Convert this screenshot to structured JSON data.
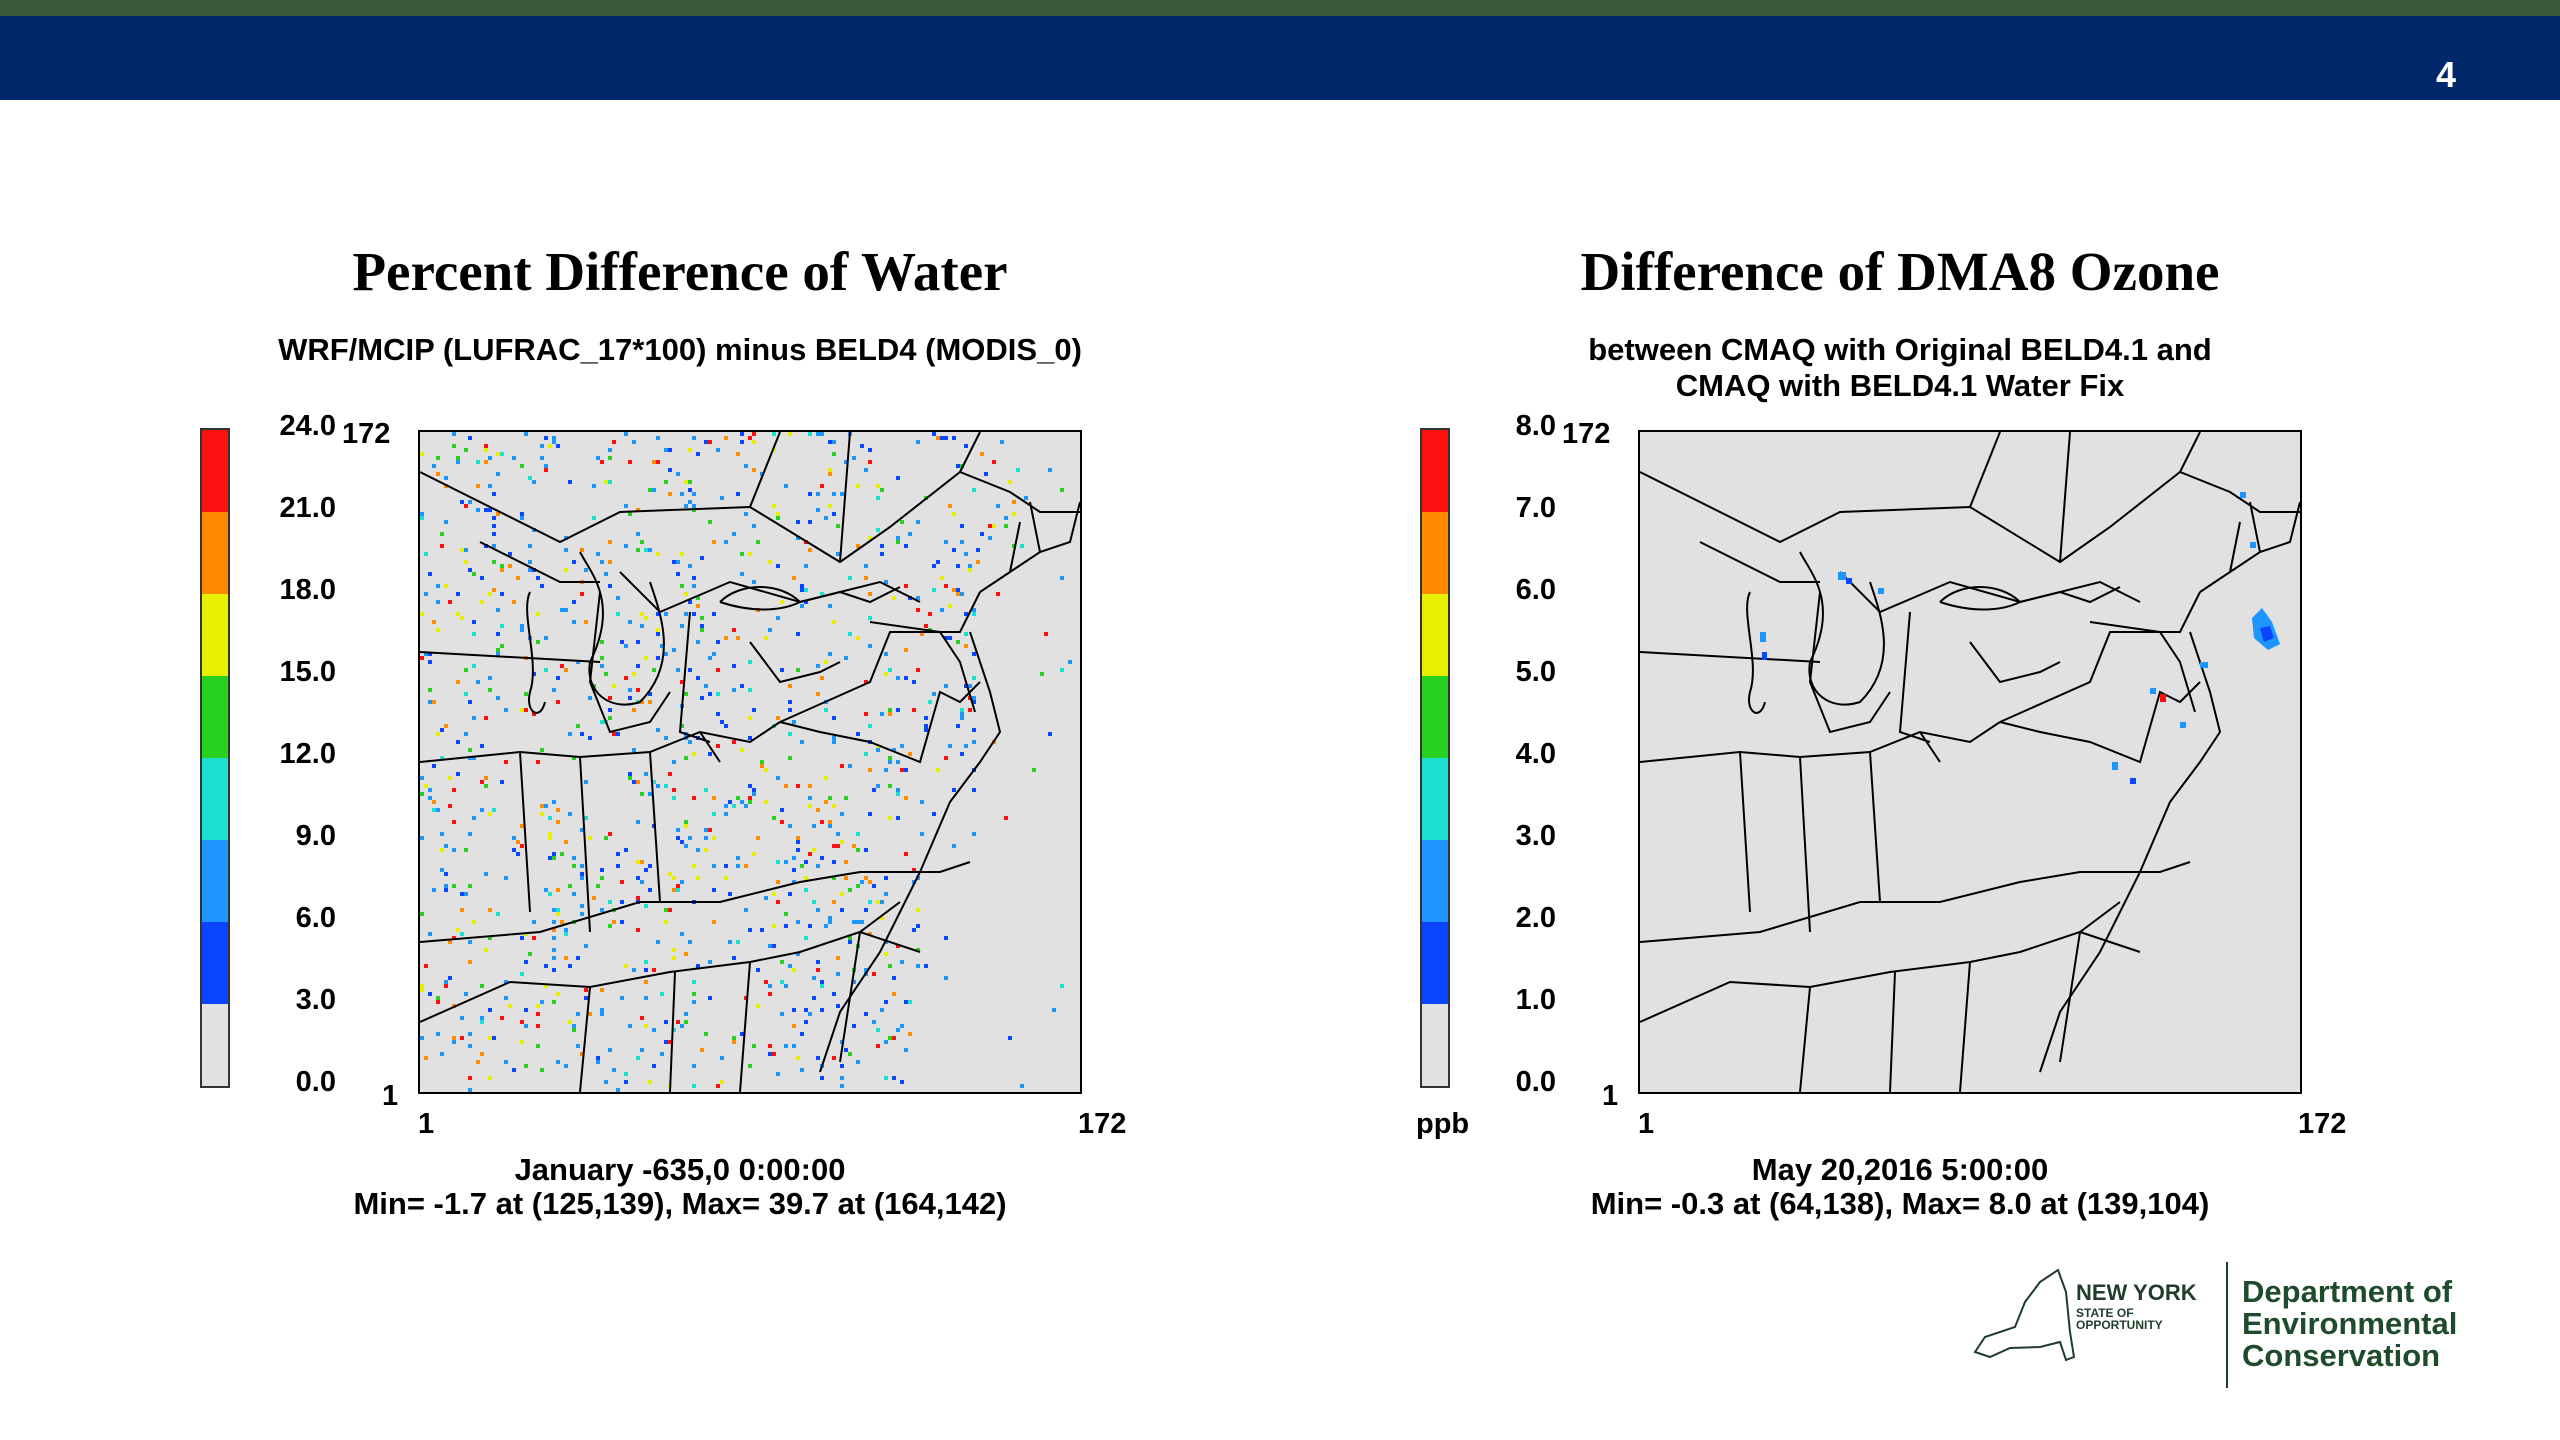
{
  "slide": {
    "number": "4"
  },
  "panels": [
    {
      "title": "Percent Difference of Water",
      "subtitle": "WRF/MCIP (LUFRAC_17*100) minus BELD4 (MODIS_0)",
      "colorbar": {
        "ticks": [
          "24.0",
          "21.0",
          "18.0",
          "15.0",
          "12.0",
          "9.0",
          "6.0",
          "3.0",
          "0.0"
        ],
        "colors": [
          "#ff1010",
          "#ff8a00",
          "#e6f000",
          "#28d020",
          "#1ee0d0",
          "#1e96ff",
          "#0a46ff",
          "#e1e1e1"
        ],
        "unit": ""
      },
      "axes": {
        "y_top": "172",
        "y_bottom": "1",
        "x_left": "1",
        "x_right": "172"
      },
      "time": "January -635,0 0:00:00",
      "minmax": "Min=    -1.7 at (125,139), Max=    39.7 at (164,142)"
    },
    {
      "title": "Difference of DMA8 Ozone",
      "subtitle": "between CMAQ with Original BELD4.1 and\nCMAQ with BELD4.1 Water Fix",
      "colorbar": {
        "ticks": [
          "8.0",
          "7.0",
          "6.0",
          "5.0",
          "4.0",
          "3.0",
          "2.0",
          "1.0",
          "0.0"
        ],
        "colors": [
          "#ff1010",
          "#ff8a00",
          "#e6f000",
          "#28d020",
          "#1ee0d0",
          "#1e96ff",
          "#0a46ff",
          "#e1e1e1"
        ],
        "unit": "ppb"
      },
      "axes": {
        "y_top": "172",
        "y_bottom": "1",
        "x_left": "1",
        "x_right": "172"
      },
      "time": "May 20,2016 5:00:00",
      "minmax": "Min=    -0.3 at (64,138), Max=      8.0 at (139,104)"
    }
  ],
  "logo": {
    "state_line1": "NEW YORK",
    "state_line2": "STATE OF",
    "state_line3": "OPPORTUNITY",
    "dept_line1": "Department of",
    "dept_line2": "Environmental",
    "dept_line3": "Conservation"
  }
}
